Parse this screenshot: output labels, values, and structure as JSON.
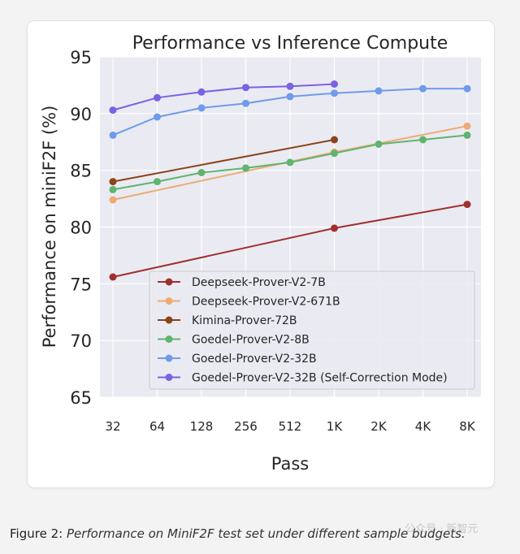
{
  "chart_data": {
    "type": "line",
    "title": "Performance vs Inference Compute",
    "xlabel": "Pass",
    "ylabel": "Performance on miniF2F (%)",
    "categories": [
      "32",
      "64",
      "128",
      "256",
      "512",
      "1K",
      "2K",
      "4K",
      "8K"
    ],
    "ylim": [
      65,
      95
    ],
    "yticks": [
      65,
      70,
      75,
      80,
      85,
      90,
      95
    ],
    "grid": true,
    "legend_position": "lower-right",
    "series": [
      {
        "name": "Deepseek-Prover-V2-7B",
        "color": "#a0302e",
        "values": [
          75.6,
          null,
          null,
          null,
          null,
          79.9,
          null,
          null,
          82.0
        ]
      },
      {
        "name": "Deepseek-Prover-V2-671B",
        "color": "#eeaa72",
        "values": [
          82.4,
          null,
          null,
          null,
          null,
          86.6,
          null,
          null,
          88.9
        ]
      },
      {
        "name": "Kimina-Prover-72B",
        "color": "#8b4419",
        "values": [
          84.0,
          null,
          null,
          null,
          null,
          87.7,
          null,
          null,
          null
        ]
      },
      {
        "name": "Goedel-Prover-V2-8B",
        "color": "#5fb46f",
        "values": [
          83.3,
          84.0,
          84.8,
          85.2,
          85.7,
          86.5,
          87.3,
          87.7,
          88.1
        ]
      },
      {
        "name": "Goedel-Prover-V2-32B",
        "color": "#6f9bea",
        "values": [
          88.1,
          89.7,
          90.5,
          90.9,
          91.5,
          91.8,
          92.0,
          92.2,
          92.2
        ]
      },
      {
        "name": "Goedel-Prover-V2-32B (Self-Correction Mode)",
        "color": "#7a62e2",
        "values": [
          90.3,
          91.4,
          91.9,
          92.3,
          92.4,
          92.6,
          null,
          null,
          null
        ]
      }
    ]
  },
  "caption": {
    "figure_label": "Figure 2",
    "text": "Performance on MiniF2F test set under different sample budgets."
  },
  "watermark": "公众号 · 新智元"
}
